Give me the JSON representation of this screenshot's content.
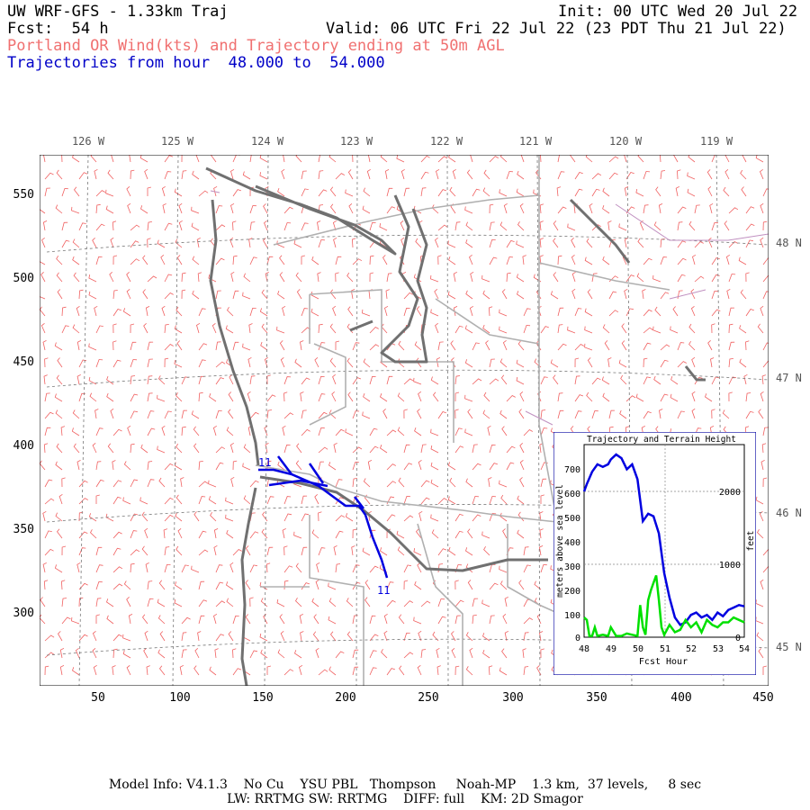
{
  "header": {
    "model": "UW WRF-GFS - 1.33km Traj",
    "init": "Init: 00 UTC Wed 20 Jul 22",
    "fcst": "Fcst:  54 h",
    "valid": "Valid: 06 UTC Fri 22 Jul 22 (23 PDT Thu 21 Jul 22)",
    "product": "Portland OR Wind(kts) and Trajectory ending at 50m AGL",
    "traj_hours": "Trajectories from hour  48.000 to  54.000"
  },
  "map": {
    "lon_labels": [
      "126 W",
      "125 W",
      "124 W",
      "123 W",
      "122 W",
      "121 W",
      "120 W",
      "119 W"
    ],
    "lat_labels": [
      "48 N",
      "47 N",
      "46 N",
      "45 N"
    ],
    "y_ticks": [
      "550",
      "500",
      "450",
      "400",
      "350",
      "300"
    ],
    "x_ticks": [
      "50",
      "100",
      "150",
      "200",
      "250",
      "300",
      "350",
      "400",
      "450"
    ],
    "traj_label_start": "11",
    "traj_label_end": "11",
    "colors": {
      "barb": "#f06060",
      "coast": "#707070",
      "border": "#b0b0b0",
      "traj": "#0000e0",
      "county": "#c090c0"
    }
  },
  "inset": {
    "title": "Trajectory and Terrain Height",
    "ylabel_left": "meters above sea level",
    "ylabel_right": "feet",
    "xlabel": "Fcst Hour",
    "y_ticks": [
      "700",
      "600",
      "500",
      "400",
      "300",
      "200",
      "100",
      "0"
    ],
    "right_ticks": [
      "2000",
      "1000",
      "0"
    ],
    "x_ticks": [
      "48",
      "49",
      "50",
      "51",
      "52",
      "53",
      "54"
    ]
  },
  "chart_data": {
    "type": "line",
    "title": "Trajectory and Terrain Height",
    "xlabel": "Fcst Hour",
    "ylabel": "meters above sea level",
    "xlim": [
      48,
      54
    ],
    "ylim": [
      0,
      780
    ],
    "series": [
      {
        "x": [
          48,
          48.1,
          48.3,
          48.5,
          48.7,
          48.9,
          49.0,
          49.2,
          49.4,
          49.6,
          49.8,
          50.0,
          50.2,
          50.4,
          50.6,
          50.8,
          51.0,
          51.2,
          51.4,
          51.6,
          51.8,
          52.0,
          52.2,
          52.4,
          52.6,
          52.8,
          53.0,
          53.2,
          53.4,
          53.6,
          53.8,
          54.0
        ],
        "values": [
          590,
          620,
          670,
          700,
          690,
          700,
          720,
          740,
          725,
          680,
          700,
          640,
          470,
          500,
          490,
          420,
          260,
          160,
          80,
          50,
          60,
          90,
          100,
          80,
          90,
          70,
          100,
          85,
          110,
          120,
          130,
          125
        ]
      },
      {
        "x": [
          48,
          48.1,
          48.2,
          48.3,
          48.4,
          48.5,
          48.7,
          48.9,
          49.0,
          49.2,
          49.4,
          49.6,
          49.8,
          50.0,
          50.1,
          50.2,
          50.3,
          50.4,
          50.5,
          50.6,
          50.7,
          50.8,
          50.9,
          51.0,
          51.1,
          51.2,
          51.4,
          51.6,
          51.8,
          52.0,
          52.2,
          52.4,
          52.6,
          52.8,
          53.0,
          53.2,
          53.4,
          53.6,
          53.8,
          54.0
        ],
        "values": [
          80,
          70,
          5,
          5,
          40,
          5,
          10,
          5,
          40,
          5,
          5,
          15,
          10,
          5,
          130,
          40,
          10,
          150,
          190,
          220,
          250,
          150,
          40,
          10,
          30,
          50,
          20,
          30,
          70,
          40,
          60,
          20,
          70,
          50,
          40,
          60,
          60,
          80,
          70,
          60
        ]
      }
    ]
  }
}
